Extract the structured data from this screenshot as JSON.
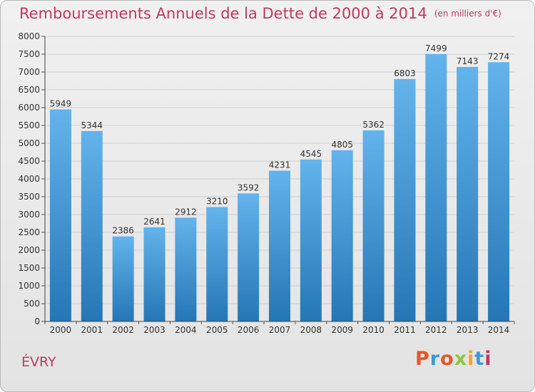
{
  "header": {
    "title": "Remboursements Annuels de la Dette de 2000 à 2014",
    "unit": "(en milliers d'€)"
  },
  "footer": {
    "city": "ÉVRY",
    "logo": "Proxiti",
    "logo_colors": [
      "#e8562a",
      "#3b9ad9",
      "#e8562a",
      "#8cc63f",
      "#f5a623",
      "#3b9ad9",
      "#c0395f"
    ]
  },
  "colors": {
    "bar_top": "#63b3ec",
    "bar_bottom": "#2576b5",
    "title": "#c0395f"
  },
  "chart_data": {
    "type": "bar",
    "categories": [
      "2000",
      "2001",
      "2002",
      "2003",
      "2004",
      "2005",
      "2006",
      "2007",
      "2008",
      "2009",
      "2010",
      "2011",
      "2012",
      "2013",
      "2014"
    ],
    "values": [
      5949,
      5344,
      2386,
      2641,
      2912,
      3210,
      3592,
      4231,
      4545,
      4805,
      5362,
      6803,
      7499,
      7143,
      7274
    ],
    "ylim": [
      0,
      8000
    ],
    "ytick_step": 500,
    "grid": true
  }
}
